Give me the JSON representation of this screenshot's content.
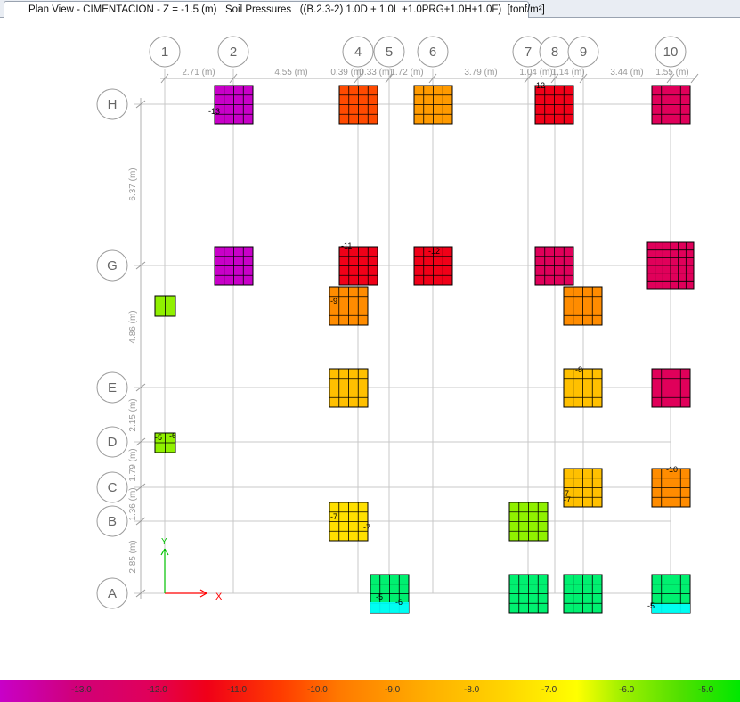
{
  "tab_title": "Plan View - CIMENTACION - Z = -1.5 (m)   Soil Pressures   ((B.2.3-2) 1.0D + 1.0L +1.0PRG+1.0H+1.0F)  [tonf/m²]",
  "grid_x_labels": [
    "1",
    "2",
    "4",
    "5",
    "6",
    "7",
    "8",
    "9",
    "10"
  ],
  "grid_y_labels": [
    "H",
    "G",
    "E",
    "D",
    "C",
    "B",
    "A"
  ],
  "x_spacing_labels": [
    "2.71 (m)",
    "4.55 (m)",
    "0.39 (m)",
    "0.33 (m)",
    "1.72 (m)",
    "3.79 (m)",
    "1.04 (m)",
    "1.14 (m)",
    "3.44 (m)",
    "1.55 (m)"
  ],
  "y_spacing_labels": [
    "6.37 (m)",
    "4.86 (m)",
    "2.15 (m)",
    "1.79 (m)",
    "1.36 (m)",
    "2.85 (m)"
  ],
  "axis_labels": {
    "x": "X",
    "y": "Y"
  },
  "footing_labels": [
    "-13",
    "-11",
    "-12",
    "-12",
    "-9",
    "-7",
    "-7",
    "-8",
    "-7",
    "-7",
    "-10",
    "-5",
    "-6",
    "-5",
    "-6",
    "-5"
  ],
  "legend": {
    "values": [
      "-13.0",
      "-12.0",
      "-11.0",
      "-10.0",
      "-9.0",
      "-8.0",
      "-7.0",
      "-6.0",
      "-5.0"
    ],
    "colors": [
      "#c800c8",
      "#e0005a",
      "#f00018",
      "#ff3c00",
      "#ff7a00",
      "#ffb000",
      "#ffd400",
      "#ffff00",
      "#50e000",
      "#00e800"
    ]
  },
  "footing_colors": {
    "magenta": "#c800c8",
    "crimson": "#e0005a",
    "red": "#f00018",
    "redorange": "#ff4a00",
    "orange": "#ff8c00",
    "lightorange": "#ff9a00",
    "amber": "#ffc000",
    "yellow": "#ffe000",
    "lime": "#90f000",
    "green": "#00f070",
    "cyan": "#00ffff"
  }
}
